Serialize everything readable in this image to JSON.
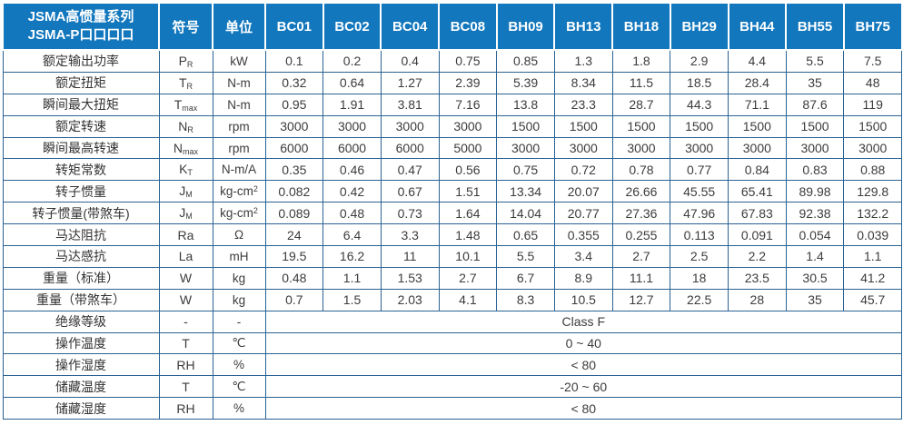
{
  "table": {
    "header": {
      "title_line1": "JSMA高惯量系列",
      "title_line2": "JSMA-P口口口口",
      "symbol_col": "符号",
      "unit_col": "单位",
      "models": [
        "BC01",
        "BC02",
        "BC04",
        "BC08",
        "BH09",
        "BH13",
        "BH18",
        "BH29",
        "BH44",
        "BH55",
        "BH75"
      ]
    },
    "rows": [
      {
        "label": "额定输出功率",
        "symbol_base": "P",
        "symbol_sub": "R",
        "unit": "kW",
        "values": [
          "0.1",
          "0.2",
          "0.4",
          "0.75",
          "0.85",
          "1.3",
          "1.8",
          "2.9",
          "4.4",
          "5.5",
          "7.5"
        ]
      },
      {
        "label": "额定扭矩",
        "symbol_base": "T",
        "symbol_sub": "R",
        "unit": "N-m",
        "values": [
          "0.32",
          "0.64",
          "1.27",
          "2.39",
          "5.39",
          "8.34",
          "11.5",
          "18.5",
          "28.4",
          "35",
          "48"
        ]
      },
      {
        "label": "瞬间最大扭矩",
        "symbol_base": "T",
        "symbol_sub": "max",
        "unit": "N-m",
        "values": [
          "0.95",
          "1.91",
          "3.81",
          "7.16",
          "13.8",
          "23.3",
          "28.7",
          "44.3",
          "71.1",
          "87.6",
          "119"
        ]
      },
      {
        "label": "额定转速",
        "symbol_base": "N",
        "symbol_sub": "R",
        "unit": "rpm",
        "values": [
          "3000",
          "3000",
          "3000",
          "3000",
          "1500",
          "1500",
          "1500",
          "1500",
          "1500",
          "1500",
          "1500"
        ]
      },
      {
        "label": "瞬间最高转速",
        "symbol_base": "N",
        "symbol_sub": "max",
        "unit": "rpm",
        "values": [
          "6000",
          "6000",
          "6000",
          "5000",
          "3000",
          "3000",
          "3000",
          "3000",
          "3000",
          "3000",
          "3000"
        ]
      },
      {
        "label": "转矩常数",
        "symbol_base": "K",
        "symbol_sub": "T",
        "unit": "N-m/A",
        "values": [
          "0.35",
          "0.46",
          "0.47",
          "0.56",
          "0.75",
          "0.72",
          "0.78",
          "0.77",
          "0.84",
          "0.83",
          "0.88"
        ]
      },
      {
        "label": "转子惯量",
        "symbol_base": "J",
        "symbol_sub": "M",
        "unit": "kg-cm",
        "unit_sup": "2",
        "values": [
          "0.082",
          "0.42",
          "0.67",
          "1.51",
          "13.34",
          "20.07",
          "26.66",
          "45.55",
          "65.41",
          "89.98",
          "129.8"
        ]
      },
      {
        "label": "转子惯量(带煞车)",
        "symbol_base": "J",
        "symbol_sub": "M",
        "unit": "kg-cm",
        "unit_sup": "2",
        "values": [
          "0.089",
          "0.48",
          "0.73",
          "1.64",
          "14.04",
          "20.77",
          "27.36",
          "47.96",
          "67.83",
          "92.38",
          "132.2"
        ]
      },
      {
        "label": "马达阻抗",
        "symbol_base": "Ra",
        "unit": "Ω",
        "values": [
          "24",
          "6.4",
          "3.3",
          "1.48",
          "0.65",
          "0.355",
          "0.255",
          "0.113",
          "0.091",
          "0.054",
          "0.039"
        ]
      },
      {
        "label": "马达感抗",
        "symbol_base": "La",
        "unit": "mH",
        "values": [
          "19.5",
          "16.2",
          "11",
          "10.1",
          "5.5",
          "3.4",
          "2.7",
          "2.5",
          "2.2",
          "1.4",
          "1.1"
        ]
      },
      {
        "label": "重量（标准）",
        "symbol_base": "W",
        "unit": "kg",
        "values": [
          "0.48",
          "1.1",
          "1.53",
          "2.7",
          "6.7",
          "8.9",
          "11.1",
          "18",
          "23.5",
          "30.5",
          "41.2"
        ]
      },
      {
        "label": "重量（带煞车）",
        "symbol_base": "W",
        "unit": "kg",
        "values": [
          "0.7",
          "1.5",
          "2.03",
          "4.1",
          "8.3",
          "10.5",
          "12.7",
          "22.5",
          "28",
          "35",
          "45.7"
        ]
      }
    ],
    "span_rows": [
      {
        "label": "绝缘等级",
        "symbol": "-",
        "unit": "-",
        "value": "Class F"
      },
      {
        "label": "操作温度",
        "symbol": "T",
        "unit": "℃",
        "value": "0 ~ 40"
      },
      {
        "label": "操作湿度",
        "symbol": "RH",
        "unit": "%",
        "value": "< 80"
      },
      {
        "label": "储藏温度",
        "symbol": "T",
        "unit": "℃",
        "value": "-20 ~ 60"
      },
      {
        "label": "储藏湿度",
        "symbol": "RH",
        "unit": "%",
        "value": "< 80"
      }
    ],
    "colors": {
      "header_bg": "#1277bd",
      "border": "#2a6293",
      "header_text": "#ffffff",
      "body_text": "#3c3c3c"
    }
  }
}
